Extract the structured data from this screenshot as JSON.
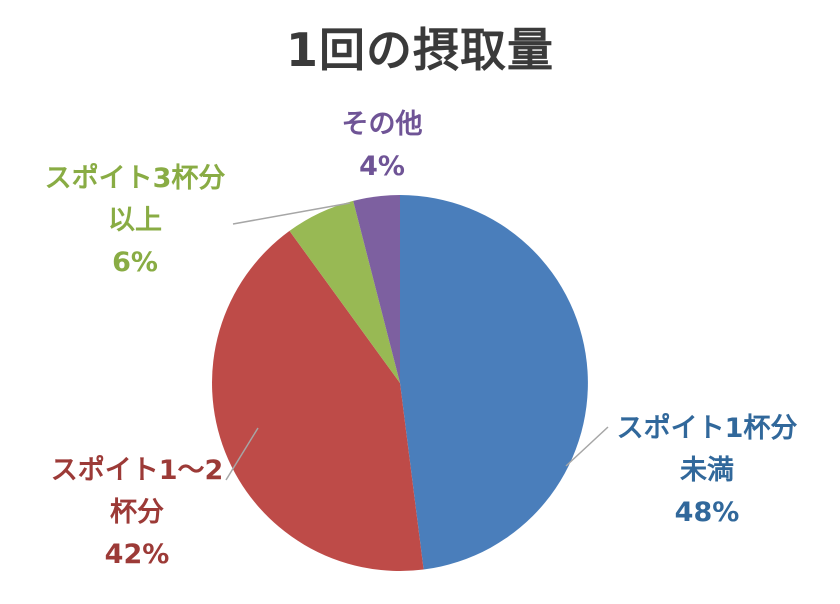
{
  "title": "1回の摂取量",
  "chart_data": {
    "type": "pie",
    "title": "1回の摂取量",
    "unit": "percent",
    "start_angle_deg": 0,
    "direction": "clockwise",
    "legend": "none",
    "background_color": "#ffffff",
    "title_color": "#3a3a3a",
    "leader_line_color": "#a6a6a6",
    "slices": [
      {
        "label": "スポイト1杯分未満",
        "label_lines": [
          "スポイト1杯分",
          "未満"
        ],
        "value": 48,
        "pct_label": "48%",
        "color": "#4a7ebb",
        "label_color": "#31689b"
      },
      {
        "label": "スポイト1〜2杯分",
        "label_lines": [
          "スポイト1〜2",
          "杯分"
        ],
        "value": 42,
        "pct_label": "42%",
        "color": "#be4b48",
        "label_color": "#9c3a37"
      },
      {
        "label": "スポイト3杯分以上",
        "label_lines": [
          "スポイト3杯分",
          "以上"
        ],
        "value": 6,
        "pct_label": "6%",
        "color": "#98b954",
        "label_color": "#89ac44"
      },
      {
        "label": "その他",
        "label_lines": [
          "その他"
        ],
        "value": 4,
        "pct_label": "4%",
        "color": "#7d60a0",
        "label_color": "#6f5496"
      }
    ]
  }
}
